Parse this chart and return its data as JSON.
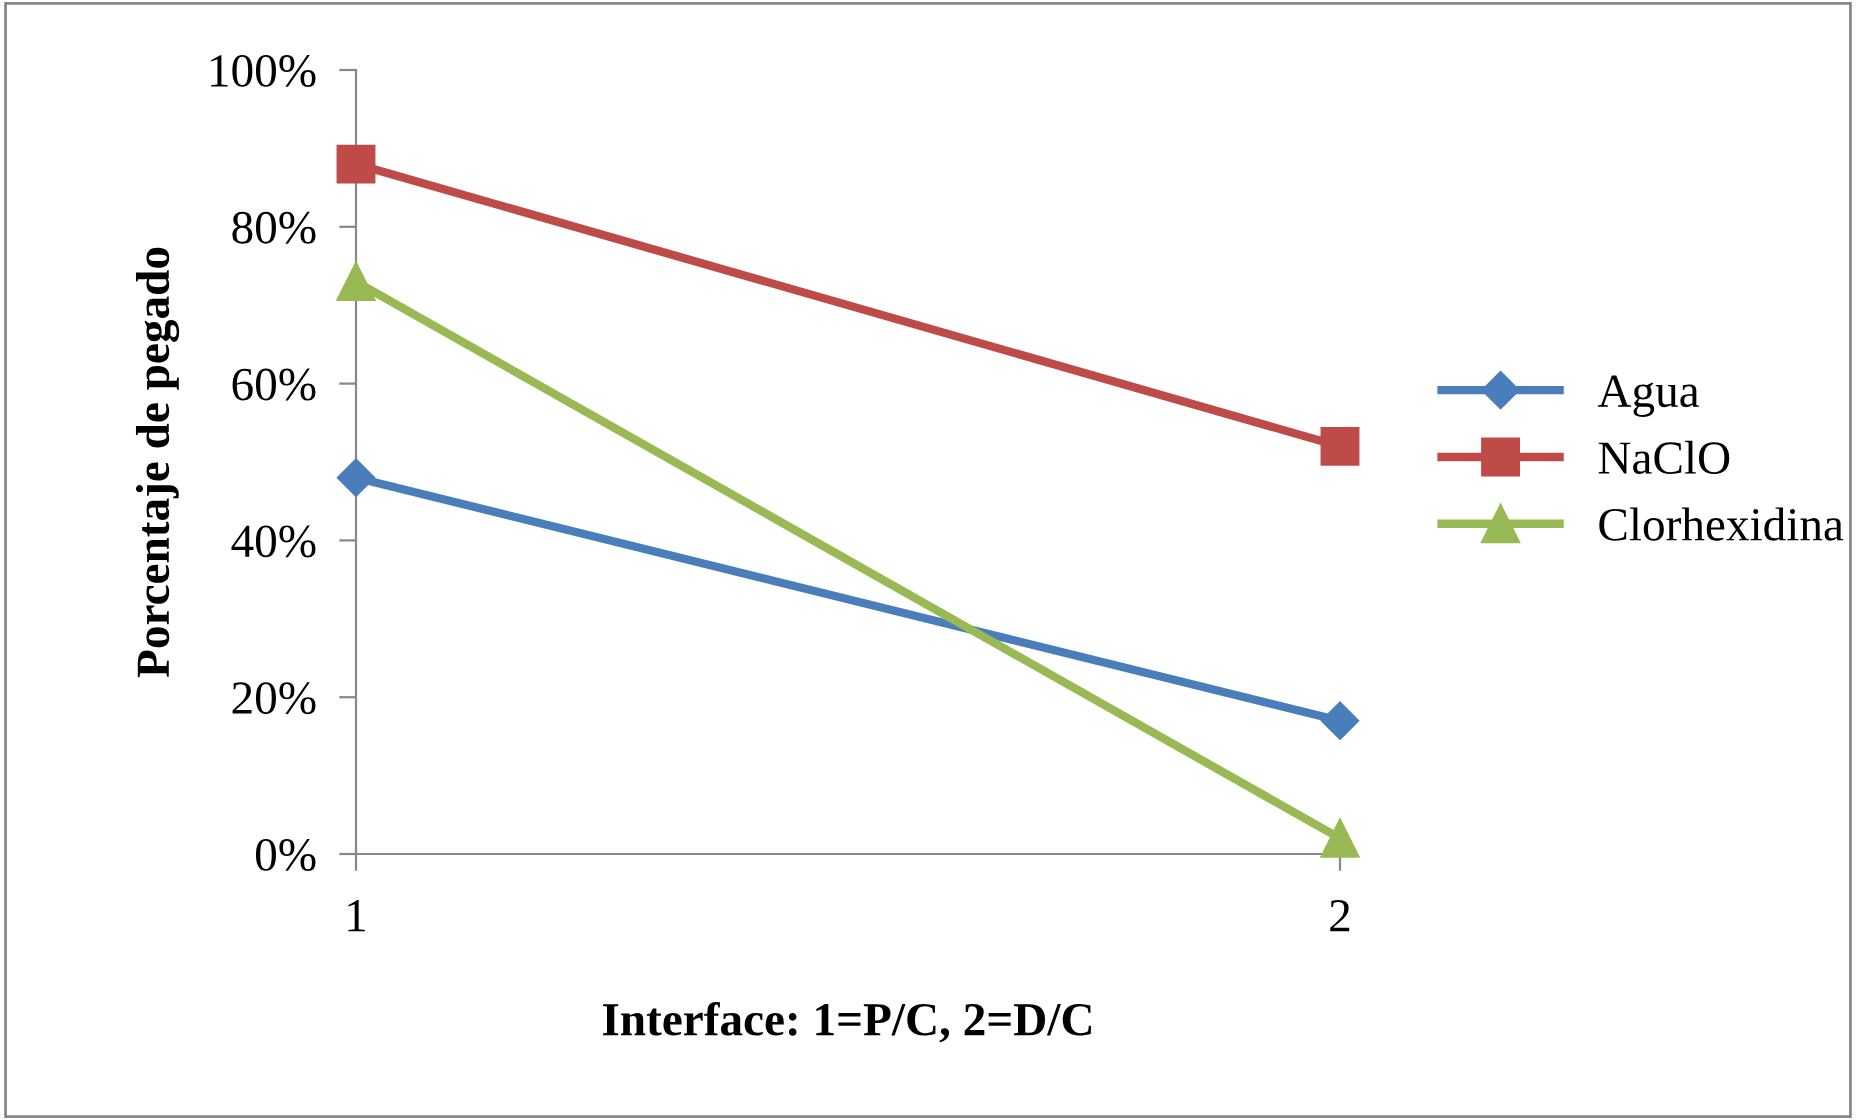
{
  "chart_data": {
    "type": "line",
    "xlabel": "Interface: 1=P/C, 2=D/C",
    "ylabel": "Porcentaje de pegado",
    "x": [
      1,
      2
    ],
    "xlim": [
      1,
      2
    ],
    "xticks": [
      1,
      2
    ],
    "series": [
      {
        "name": "Agua",
        "color": "#4a7ebb",
        "marker": "diamond",
        "values": [
          48,
          17
        ]
      },
      {
        "name": "NaClO",
        "color": "#be4b48",
        "marker": "square",
        "values": [
          88,
          52
        ]
      },
      {
        "name": "Clorhexidina",
        "color": "#98b954",
        "marker": "triangle",
        "values": [
          73,
          2
        ]
      }
    ],
    "ylim": [
      0,
      100
    ],
    "yticks": [
      {
        "value": 0,
        "label": "0%"
      },
      {
        "value": 20,
        "label": "20%"
      },
      {
        "value": 40,
        "label": "40%"
      },
      {
        "value": 60,
        "label": "60%"
      },
      {
        "value": 80,
        "label": "80%"
      },
      {
        "value": 100,
        "label": "100%"
      }
    ],
    "grid": false,
    "legend": "right",
    "line_style": "solid"
  }
}
